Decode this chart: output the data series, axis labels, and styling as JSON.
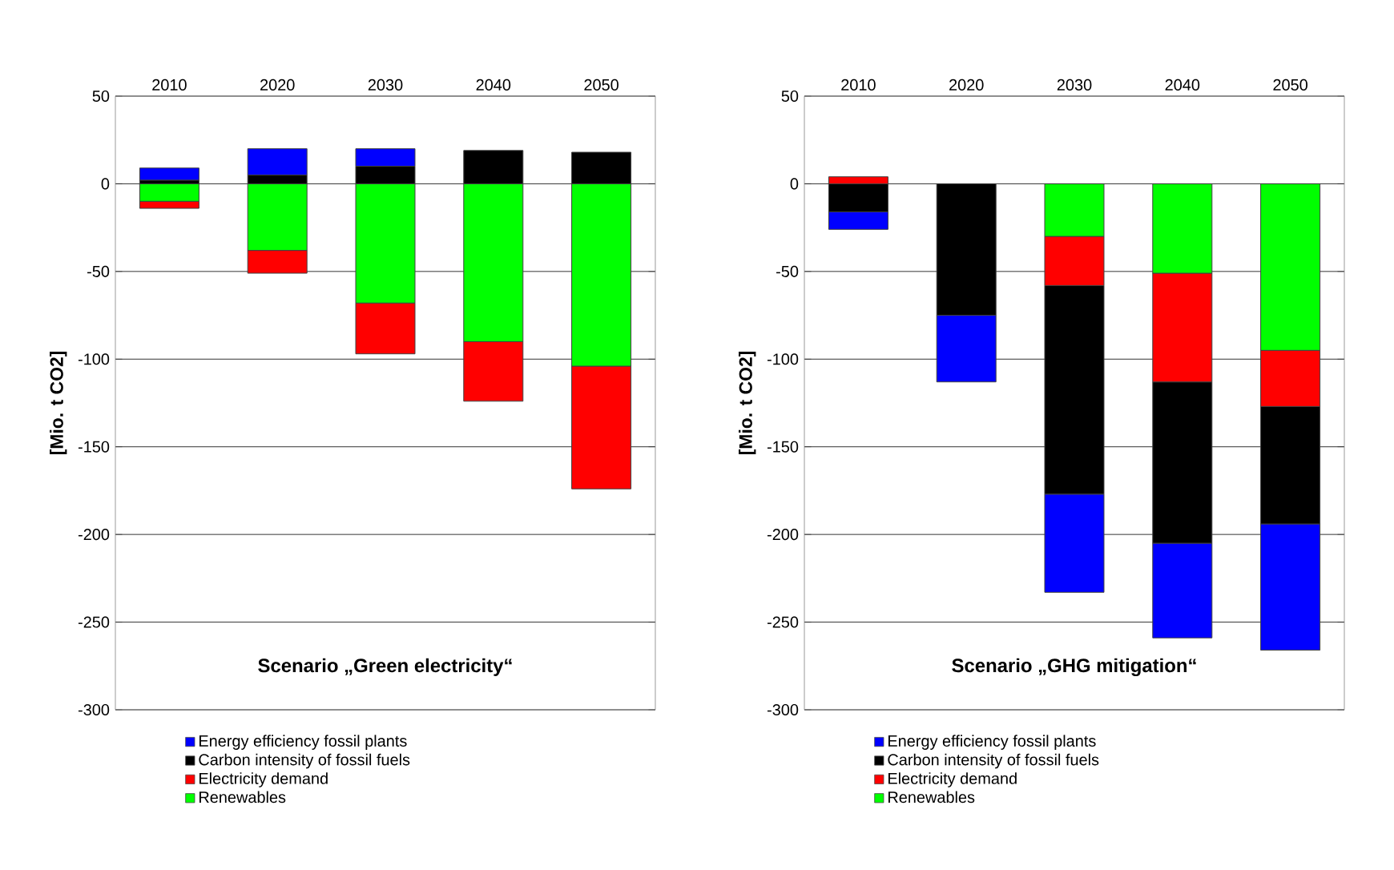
{
  "chart_data": [
    {
      "type": "bar",
      "stacked": true,
      "title": "Scenario „Green electricity“",
      "ylabel": "[Mio. t CO2]",
      "categories": [
        "2010",
        "2020",
        "2030",
        "2040",
        "2050"
      ],
      "series": [
        {
          "name": "Renewables",
          "color": "#00ff00",
          "values": [
            -10,
            -38,
            -68,
            -90,
            -104
          ]
        },
        {
          "name": "Electricity demand",
          "color": "#ff0000",
          "values": [
            -4,
            -13,
            -29,
            -34,
            -70
          ]
        },
        {
          "name": "Carbon intensity of fossil fuels",
          "color": "#000000",
          "values": [
            2,
            5,
            10,
            19,
            18
          ]
        },
        {
          "name": "Energy efficiency fossil plants",
          "color": "#0000ff",
          "values": [
            7,
            15,
            10,
            null,
            null
          ]
        }
      ],
      "ylim": [
        -300,
        50
      ],
      "yticks": [
        -300,
        -250,
        -200,
        -150,
        -100,
        -50,
        0,
        50
      ],
      "grid": "y",
      "legend": "bottom"
    },
    {
      "type": "bar",
      "stacked": true,
      "title": "Scenario „GHG mitigation“",
      "ylabel": "[Mio. t CO2]",
      "categories": [
        "2010",
        "2020",
        "2030",
        "2040",
        "2050"
      ],
      "series": [
        {
          "name": "Renewables",
          "color": "#00ff00",
          "values": [
            null,
            null,
            -30,
            -51,
            -95
          ]
        },
        {
          "name": "Electricity demand",
          "color": "#ff0000",
          "values": [
            4,
            null,
            -28,
            -62,
            -32
          ]
        },
        {
          "name": "Carbon intensity of fossil fuels",
          "color": "#000000",
          "values": [
            -16,
            -75,
            -119,
            -92,
            -67
          ]
        },
        {
          "name": "Energy efficiency fossil plants",
          "color": "#0000ff",
          "values": [
            -10,
            -38,
            -56,
            -54,
            -72
          ]
        }
      ],
      "ylim": [
        -300,
        50
      ],
      "yticks": [
        -300,
        -250,
        -200,
        -150,
        -100,
        -50,
        0,
        50
      ],
      "grid": "y",
      "legend": "bottom"
    }
  ]
}
